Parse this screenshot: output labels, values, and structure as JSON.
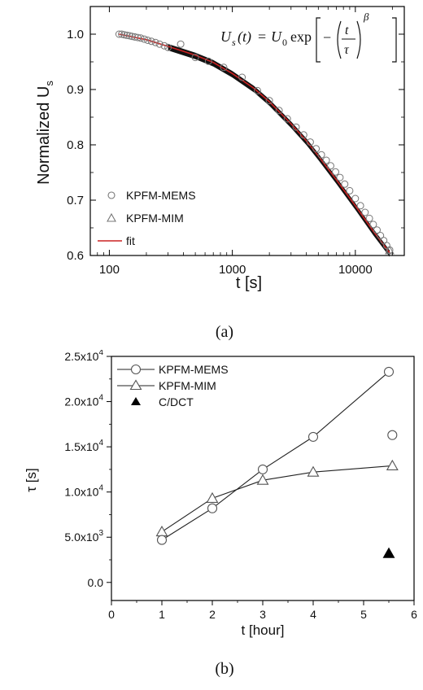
{
  "chart_data": [
    {
      "type": "scatter",
      "panel_label": "(a)",
      "xlabel": "t [s]",
      "ylabel_main": "Normalized U",
      "ylabel_sub": "s",
      "xscale": "log",
      "xlim": [
        70,
        25000
      ],
      "ylim": [
        0.6,
        1.05
      ],
      "x_ticks": [
        100,
        1000,
        10000
      ],
      "x_tick_labels": [
        "100",
        "1000",
        "10000"
      ],
      "y_ticks": [
        0.6,
        0.7,
        0.8,
        0.9,
        1.0
      ],
      "y_tick_labels": [
        "0.6",
        "0.7",
        "0.8",
        "0.9",
        "1.0"
      ],
      "formula": {
        "lhs": "U",
        "lhs_sub": "s",
        "arg": "(t)",
        "eq": "=",
        "u0": "U",
        "u0_sub": "0",
        "exp": "exp",
        "minus": "−",
        "num": "t",
        "den": "τ",
        "power": "β"
      },
      "legend_position": "bottom-left",
      "series": [
        {
          "name": "KPFM-MEMS",
          "marker": "circle",
          "x": [
            120,
            126,
            132,
            139,
            146,
            153,
            161,
            170,
            180,
            192,
            205,
            220,
            237,
            256,
            280,
            300,
            380,
            500,
            640,
            850,
            1200,
            1600,
            2000,
            2400,
            2800,
            3300,
            3800,
            4300,
            4800,
            5300,
            5800,
            6300,
            6900,
            7500,
            8200,
            9000,
            10000,
            11000,
            12000,
            13000,
            14000,
            15000,
            16000,
            17000,
            18000,
            19000
          ],
          "y": [
            1.0,
            1.0,
            0.999,
            0.998,
            0.997,
            0.996,
            0.995,
            0.994,
            0.993,
            0.991,
            0.989,
            0.987,
            0.985,
            0.982,
            0.979,
            0.976,
            0.982,
            0.958,
            0.951,
            0.94,
            0.922,
            0.898,
            0.88,
            0.862,
            0.847,
            0.832,
            0.818,
            0.805,
            0.793,
            0.782,
            0.772,
            0.762,
            0.751,
            0.741,
            0.729,
            0.717,
            0.703,
            0.69,
            0.678,
            0.667,
            0.656,
            0.646,
            0.636,
            0.627,
            0.618,
            0.61
          ]
        },
        {
          "name": "KPFM-MIM",
          "marker": "triangle",
          "x": [
            19000
          ],
          "y": [
            0.609
          ]
        },
        {
          "name": "fit",
          "marker": "line",
          "x": [
            120,
            200,
            300,
            500,
            700,
            1000,
            1500,
            2000,
            3000,
            4000,
            5000,
            7000,
            10000,
            14000,
            19000
          ],
          "y": [
            1.0,
            0.99,
            0.978,
            0.962,
            0.949,
            0.929,
            0.902,
            0.878,
            0.838,
            0.807,
            0.78,
            0.737,
            0.69,
            0.644,
            0.605
          ]
        }
      ],
      "colors": {
        "fit": "#cc2222",
        "markers": "#777777",
        "band": "#111111"
      }
    },
    {
      "type": "line",
      "panel_label": "(b)",
      "xlabel": "t [hour]",
      "ylabel": "τ [s]",
      "xlim": [
        0,
        6
      ],
      "ylim": [
        -2000,
        25000
      ],
      "x_ticks": [
        0,
        1,
        2,
        3,
        4,
        5,
        6
      ],
      "x_tick_labels": [
        "0",
        "1",
        "2",
        "3",
        "4",
        "5",
        "6"
      ],
      "y_ticks": [
        0,
        5000,
        10000,
        15000,
        20000,
        25000
      ],
      "y_tick_labels": [
        {
          "main": "0.0",
          "exp": ""
        },
        {
          "main": "5.0x10",
          "exp": "3"
        },
        {
          "main": "1.0x10",
          "exp": "4"
        },
        {
          "main": "1.5x10",
          "exp": "4"
        },
        {
          "main": "2.0x10",
          "exp": "4"
        },
        {
          "main": "2.5x10",
          "exp": "4"
        }
      ],
      "legend_position": "top-left",
      "series": [
        {
          "name": "KPFM-MEMS",
          "marker": "circle-line",
          "x": [
            1,
            2,
            3,
            4,
            5.5
          ],
          "y": [
            4700,
            8200,
            12500,
            16100,
            23300
          ]
        },
        {
          "name": "",
          "marker": "circle",
          "x": [
            5.57
          ],
          "y": [
            16300
          ]
        },
        {
          "name": "KPFM-MIM",
          "marker": "triangle-line",
          "x": [
            1,
            2,
            3,
            4,
            5.57
          ],
          "y": [
            5600,
            9300,
            11300,
            12200,
            12900
          ]
        },
        {
          "name": "C/DCT",
          "marker": "filled-triangle",
          "x": [
            5.5
          ],
          "y": [
            3200
          ]
        }
      ]
    }
  ]
}
